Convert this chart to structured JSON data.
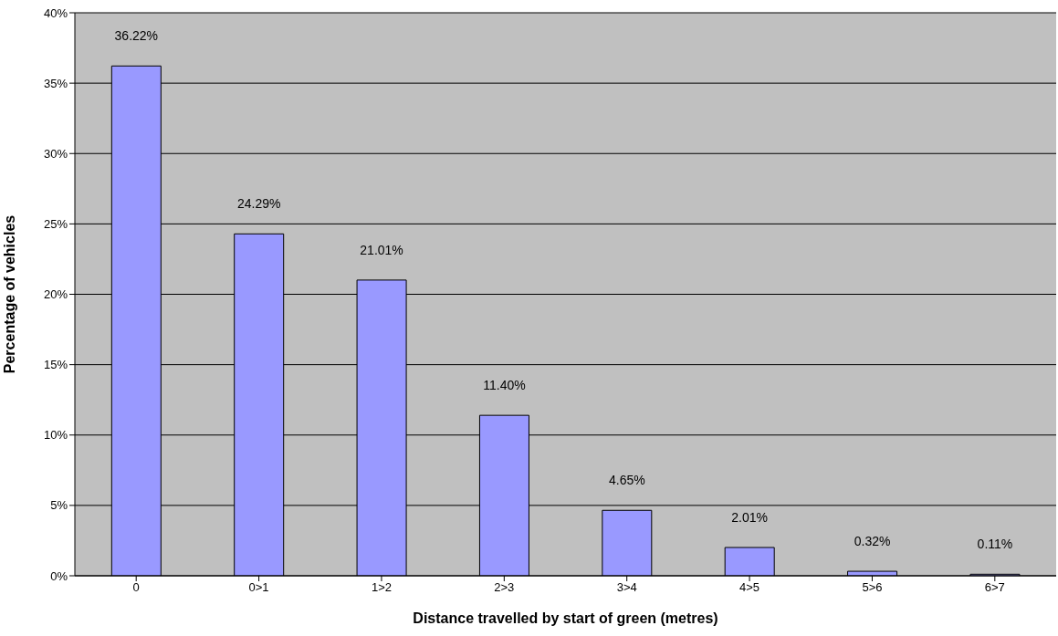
{
  "chart_data": {
    "type": "bar",
    "xlabel": "Distance travelled by start of green (metres)",
    "ylabel": "Percentage of vehicles",
    "categories": [
      "0",
      "0>1",
      "1>2",
      "2>3",
      "3>4",
      "4>5",
      "5>6",
      "6>7"
    ],
    "values": [
      36.22,
      24.29,
      21.01,
      11.4,
      4.65,
      2.01,
      0.32,
      0.11
    ],
    "value_labels": [
      "36.22%",
      "24.29%",
      "21.01%",
      "11.40%",
      "4.65%",
      "2.01%",
      "0.32%",
      "0.11%"
    ],
    "color": "#9999ff",
    "ylim": [
      0,
      40
    ],
    "yticks": [
      {
        "value": 0,
        "label": "0%"
      },
      {
        "value": 5,
        "label": "5%"
      },
      {
        "value": 10,
        "label": "10%"
      },
      {
        "value": 15,
        "label": "15%"
      },
      {
        "value": 20,
        "label": "20%"
      },
      {
        "value": 25,
        "label": "25%"
      },
      {
        "value": 30,
        "label": "30%"
      },
      {
        "value": 35,
        "label": "35%"
      },
      {
        "value": 40,
        "label": "40%"
      }
    ],
    "grid": "y",
    "legend": false
  }
}
